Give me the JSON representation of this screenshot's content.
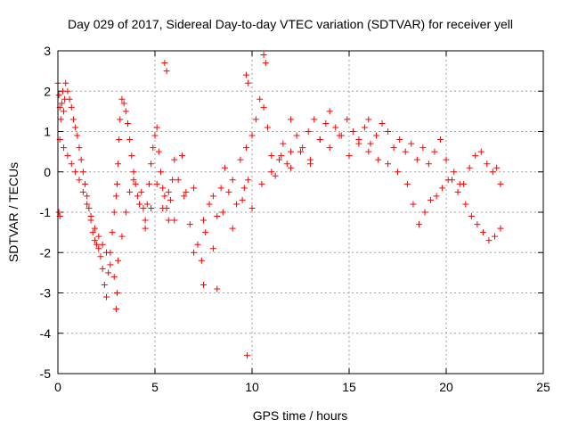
{
  "chart_data": {
    "type": "scatter",
    "title": "Day 029 of 2017, Sidereal Day-to-day VTEC variation (SDTVAR) for receiver yell",
    "xlabel": "GPS time / hours",
    "ylabel": "SDTVAR / TECUs",
    "xlim": [
      0,
      25
    ],
    "ylim": [
      -5,
      3
    ],
    "xticks": [
      0,
      5,
      10,
      15,
      20,
      25
    ],
    "yticks": [
      -5,
      -4,
      -3,
      -2,
      -1,
      0,
      1,
      2,
      3
    ],
    "grid": true,
    "marker": "+",
    "color": "#ff0000",
    "series": [
      {
        "name": "SDTVAR",
        "x": [
          0.0,
          0.05,
          0.1,
          0.15,
          0.2,
          0.25,
          0.3,
          0.35,
          0.4,
          0.5,
          0.6,
          0.7,
          0.8,
          0.9,
          1.0,
          1.1,
          1.2,
          1.3,
          1.4,
          1.5,
          1.6,
          1.7,
          1.8,
          1.9,
          2.0,
          2.1,
          2.2,
          2.3,
          2.4,
          2.5,
          2.6,
          2.7,
          2.8,
          2.9,
          3.0,
          3.05,
          3.1,
          3.15,
          3.2,
          3.3,
          3.4,
          3.5,
          3.6,
          3.7,
          3.8,
          3.9,
          4.0,
          4.1,
          4.2,
          4.3,
          4.4,
          4.5,
          4.6,
          4.7,
          4.8,
          4.9,
          5.0,
          5.1,
          5.2,
          5.3,
          5.4,
          5.5,
          5.6,
          5.7,
          5.8,
          5.9,
          6.0,
          6.2,
          6.4,
          6.6,
          6.8,
          7.0,
          7.2,
          7.4,
          7.6,
          7.8,
          8.0,
          8.2,
          8.4,
          8.6,
          8.8,
          9.0,
          9.2,
          9.4,
          9.6,
          9.7,
          9.8,
          10.0,
          10.2,
          10.4,
          10.6,
          10.8,
          11.0,
          11.2,
          11.4,
          11.6,
          11.8,
          12.0,
          12.3,
          12.6,
          12.9,
          13.2,
          13.5,
          13.8,
          14.0,
          14.3,
          14.6,
          14.9,
          15.2,
          15.5,
          15.8,
          16.1,
          16.4,
          16.7,
          17.0,
          17.3,
          17.6,
          17.9,
          18.2,
          18.5,
          18.8,
          19.1,
          19.4,
          19.7,
          20.0,
          20.3,
          20.6,
          20.9,
          21.2,
          21.5,
          21.8,
          22.1,
          22.4,
          22.6,
          22.8,
          0.1,
          0.3,
          0.5,
          0.7,
          0.9,
          1.1,
          1.3,
          1.5,
          1.7,
          1.9,
          2.1,
          2.3,
          2.5,
          2.7,
          2.9,
          3.1,
          3.3,
          3.5,
          3.7,
          3.9,
          4.2,
          4.5,
          4.8,
          5.1,
          5.4,
          5.7,
          6.0,
          6.5,
          7.0,
          7.5,
          8.0,
          8.5,
          9.0,
          9.5,
          10.0,
          10.5,
          11.0,
          11.5,
          12.0,
          12.5,
          13.0,
          13.5,
          14.0,
          14.5,
          15.0,
          15.5,
          16.0,
          16.5,
          17.0,
          17.5,
          18.0,
          18.3,
          18.6,
          18.9,
          19.2,
          19.5,
          19.8,
          20.1,
          20.4,
          20.7,
          21.0,
          21.3,
          21.6,
          21.9,
          22.2,
          22.5,
          22.8,
          5.5,
          5.6,
          9.7,
          9.8,
          10.6,
          10.7,
          0.05,
          0.1,
          3.0,
          3.05,
          7.5,
          8.2,
          9.75,
          12.0,
          13.0,
          16.0
        ],
        "y": [
          2.2,
          1.9,
          1.6,
          1.3,
          1.7,
          2.0,
          1.5,
          1.8,
          2.2,
          2.0,
          1.8,
          1.6,
          1.3,
          1.1,
          0.9,
          0.6,
          0.3,
          0.0,
          -0.3,
          -0.6,
          -0.9,
          -1.2,
          -1.5,
          -1.7,
          -1.8,
          -1.9,
          -2.1,
          -2.4,
          -2.8,
          -3.1,
          -2.5,
          -2.0,
          -1.5,
          -1.0,
          -0.6,
          -0.3,
          0.2,
          0.8,
          1.3,
          1.8,
          1.7,
          1.5,
          1.2,
          0.8,
          0.4,
          0.0,
          -0.3,
          -0.6,
          -0.8,
          -0.5,
          -0.9,
          -1.2,
          -0.8,
          -0.3,
          0.2,
          0.6,
          0.9,
          1.1,
          0.5,
          0.0,
          -0.4,
          -0.6,
          -0.9,
          -1.2,
          -0.7,
          -0.2,
          0.3,
          -0.2,
          0.4,
          -0.5,
          -1.3,
          -0.4,
          -1.8,
          -2.2,
          -1.5,
          -0.8,
          -0.6,
          -1.1,
          -0.4,
          0.1,
          -0.5,
          -0.2,
          -0.8,
          0.3,
          -0.4,
          0.6,
          -0.2,
          0.9,
          1.3,
          1.8,
          1.6,
          1.1,
          0.4,
          -0.1,
          0.3,
          0.7,
          0.2,
          0.5,
          0.9,
          0.6,
          1.0,
          1.3,
          0.8,
          1.2,
          1.5,
          1.1,
          0.9,
          1.3,
          1.0,
          0.8,
          1.1,
          0.7,
          0.9,
          1.2,
          1.0,
          0.6,
          0.8,
          0.5,
          0.7,
          0.3,
          0.6,
          0.2,
          0.5,
          0.8,
          0.3,
          -0.2,
          -0.5,
          -0.3,
          0.1,
          0.4,
          0.5,
          0.2,
          0.0,
          0.1,
          -0.3,
          0.8,
          0.6,
          0.4,
          0.2,
          0.0,
          -0.2,
          -0.5,
          -0.8,
          -1.1,
          -1.4,
          -1.6,
          -1.8,
          -2.0,
          -2.3,
          -2.6,
          -2.2,
          -1.6,
          -1.0,
          -0.5,
          -0.2,
          -0.8,
          -1.4,
          -0.9,
          -0.3,
          -0.9,
          -0.5,
          -1.2,
          -0.6,
          -2.0,
          -1.2,
          -1.9,
          -1.0,
          -1.4,
          -0.7,
          -0.9,
          -0.3,
          0.0,
          0.4,
          0.1,
          0.5,
          0.3,
          0.8,
          0.6,
          0.9,
          0.4,
          0.7,
          0.5,
          0.3,
          0.2,
          0.0,
          -0.3,
          -0.8,
          -1.3,
          -1.0,
          -0.7,
          -0.6,
          -0.4,
          -0.2,
          0.0,
          -0.3,
          -0.8,
          -1.1,
          -1.3,
          -1.5,
          -1.7,
          -1.6,
          -1.4,
          2.7,
          2.5,
          2.4,
          2.2,
          2.9,
          2.7,
          -1.0,
          -1.1,
          -3.4,
          -3.0,
          -2.8,
          -2.9,
          -4.55,
          1.3,
          0.2,
          1.3
        ]
      }
    ]
  }
}
